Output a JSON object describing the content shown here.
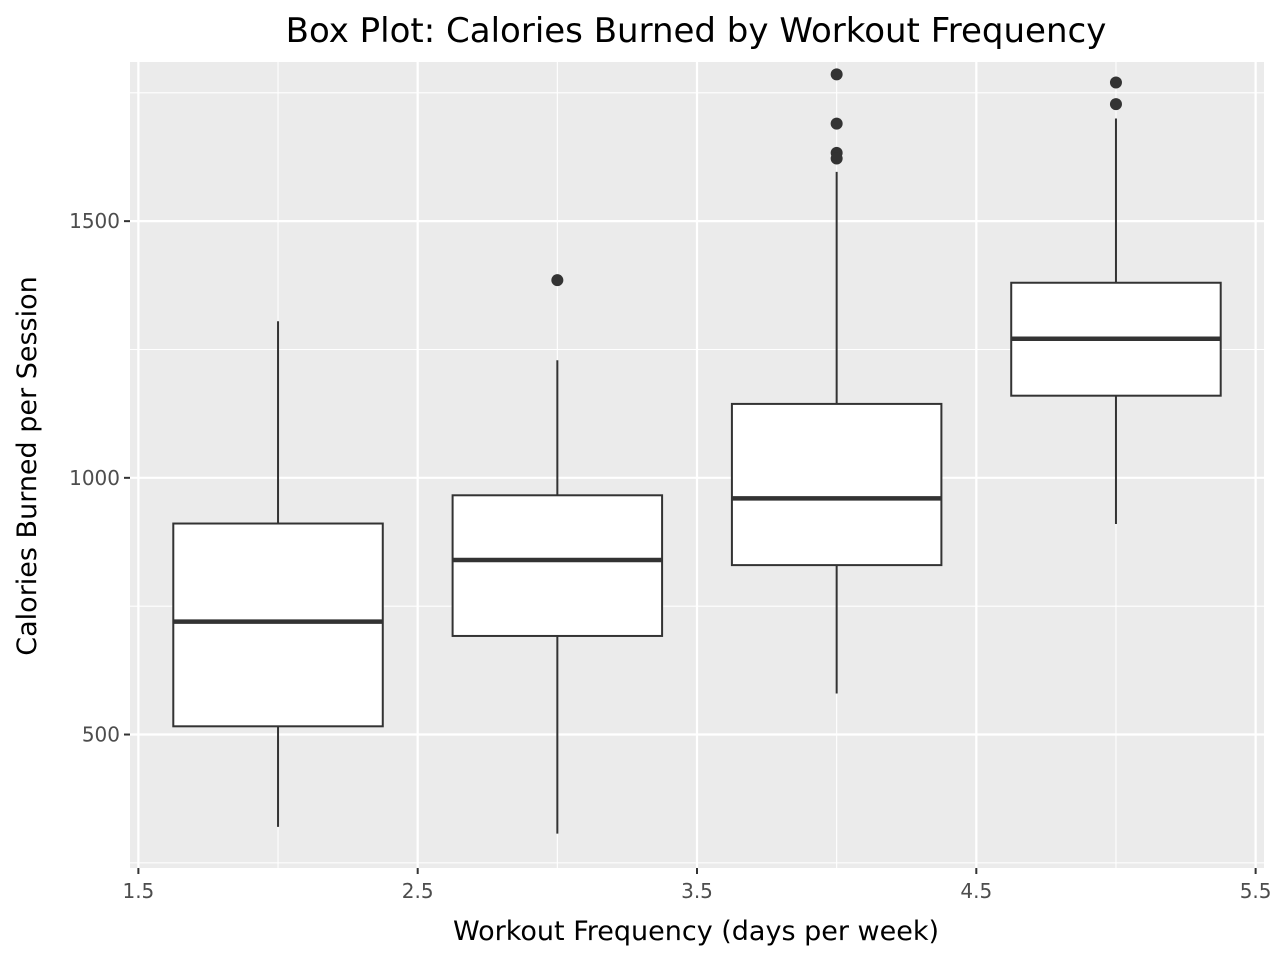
{
  "chart_data": {
    "type": "box",
    "title": "Box Plot: Calories Burned by Workout Frequency",
    "xlabel": "Workout Frequency (days per week)",
    "ylabel": "Calories Burned per Session",
    "xlim": [
      1.47,
      5.53
    ],
    "ylim": [
      240,
      1810
    ],
    "x_ticks": [
      1.5,
      2.5,
      3.5,
      4.5,
      5.5
    ],
    "x_tick_labels": [
      "1.5",
      "2.5",
      "3.5",
      "4.5",
      "5.5"
    ],
    "y_ticks": [
      500,
      1000,
      1500
    ],
    "y_tick_labels": [
      "500",
      "1000",
      "1500"
    ],
    "grid": true,
    "boxes": [
      {
        "x": 2,
        "whisker_low": 320,
        "q1": 516,
        "median": 720,
        "q3": 911,
        "whisker_high": 1305,
        "outliers": []
      },
      {
        "x": 3,
        "whisker_low": 307,
        "q1": 692,
        "median": 840,
        "q3": 966,
        "whisker_high": 1229,
        "outliers": [
          1385
        ]
      },
      {
        "x": 4,
        "whisker_low": 580,
        "q1": 830,
        "median": 960,
        "q3": 1144,
        "whisker_high": 1596,
        "outliers": [
          1786,
          1690,
          1633,
          1622
        ]
      },
      {
        "x": 5,
        "whisker_low": 910,
        "q1": 1160,
        "median": 1271,
        "q3": 1380,
        "whisker_high": 1700,
        "outliers": [
          1770,
          1728
        ]
      }
    ],
    "colors": {
      "panel": "#ebebeb",
      "grid": "#ffffff",
      "box_fill": "#ffffff",
      "box_stroke": "#333333",
      "outlier": "#333333"
    }
  }
}
